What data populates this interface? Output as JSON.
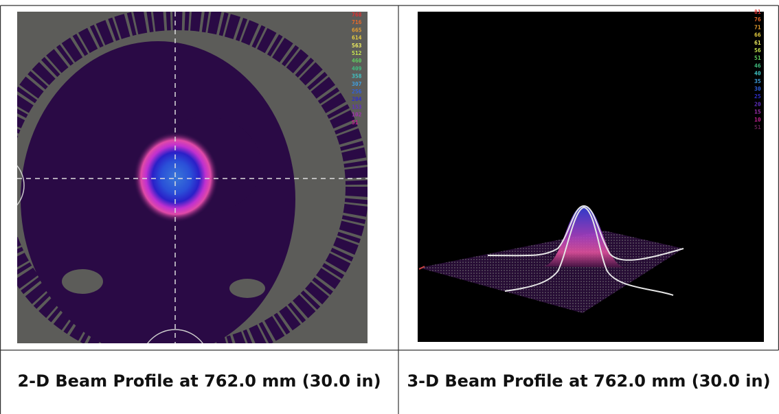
{
  "panels": [
    {
      "scale_labels": [
        "768",
        "716",
        "665",
        "614",
        "563",
        "512",
        "460",
        "409",
        "358",
        "307",
        "256",
        "204",
        "153",
        "102",
        "51"
      ],
      "caption": "2-D Beam Profile at 762.0 mm (30.0 in)"
    },
    {
      "scale_labels": [
        "81",
        "76",
        "71",
        "66",
        "61",
        "56",
        "51",
        "46",
        "40",
        "35",
        "30",
        "25",
        "20",
        "15",
        "10",
        "51"
      ],
      "caption": "3-D Beam Profile at 762.0 mm (30.0 in)"
    }
  ]
}
